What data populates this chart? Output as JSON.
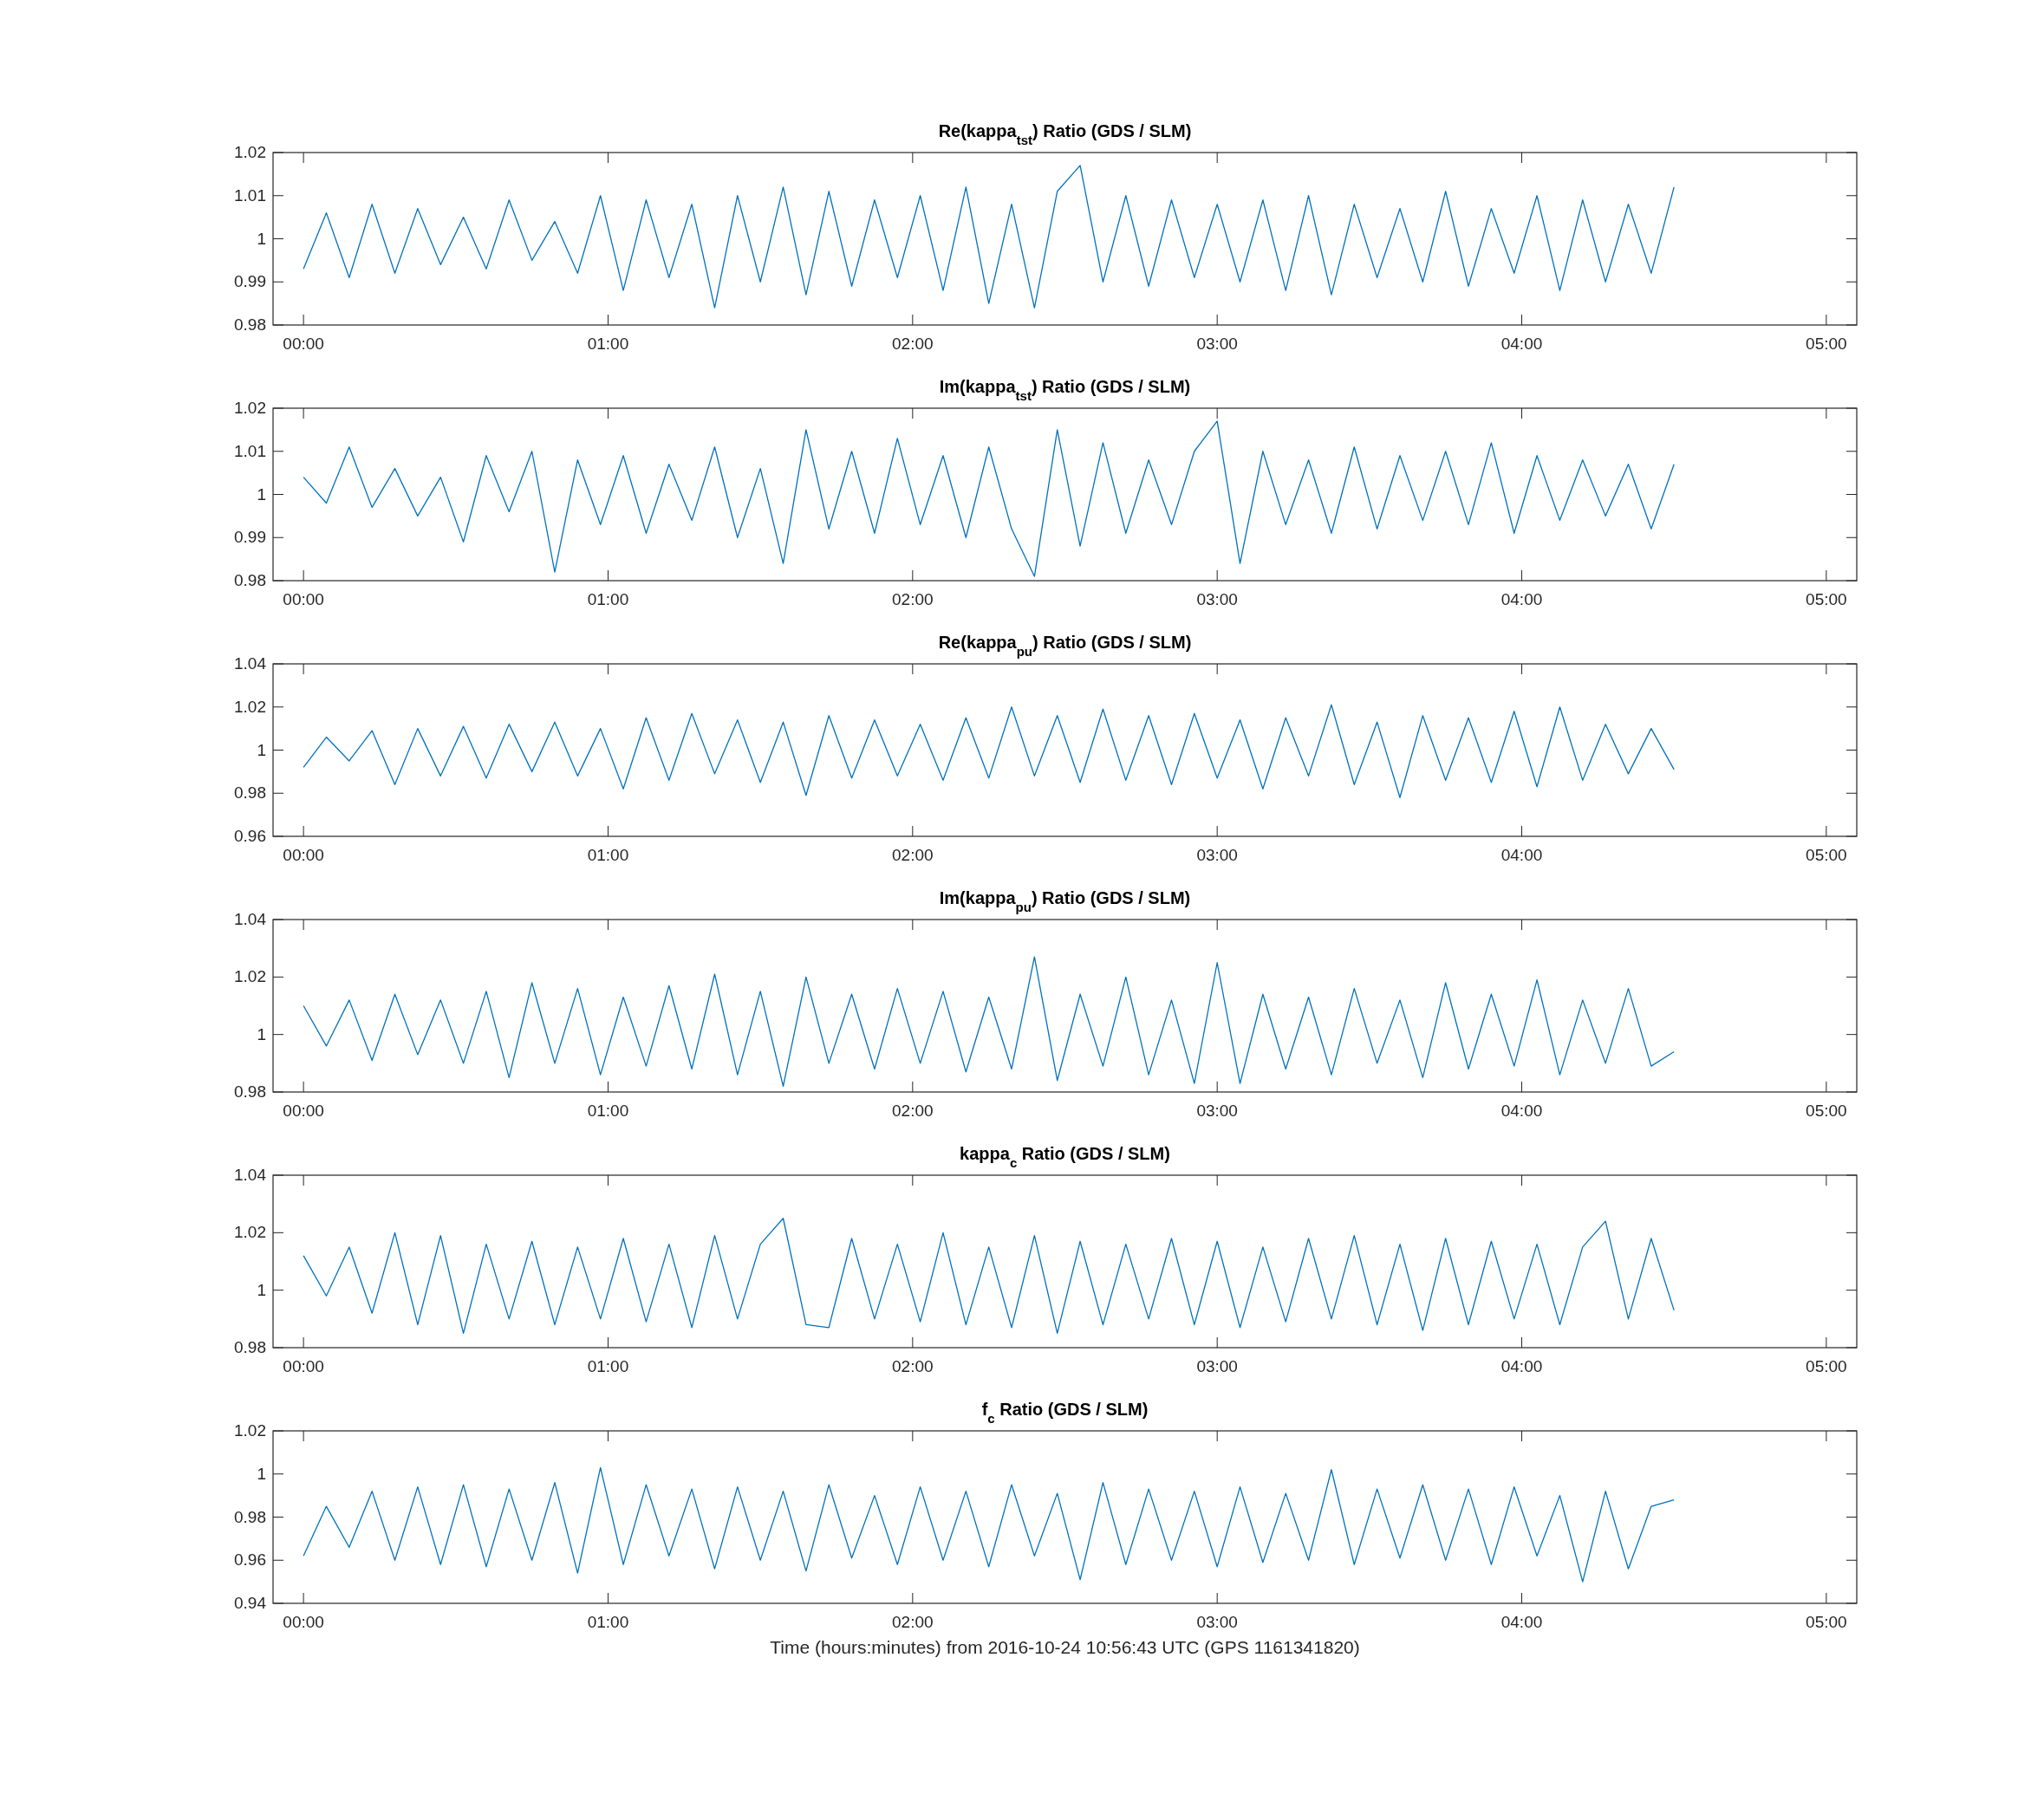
{
  "chart_data": [
    {
      "type": "line",
      "title": "Re(kappa$_{tst}$) Ratio (GDS / SLM)",
      "xlim": [
        -0.1,
        5.1
      ],
      "ylim": [
        0.98,
        1.02
      ],
      "yticks": [
        0.98,
        0.99,
        1,
        1.01,
        1.02
      ],
      "xticks": [
        {
          "value": 0,
          "label": "00:00"
        },
        {
          "value": 1,
          "label": "01:00"
        },
        {
          "value": 2,
          "label": "02:00"
        },
        {
          "value": 3,
          "label": "03:00"
        },
        {
          "value": 4,
          "label": "04:00"
        },
        {
          "value": 5,
          "label": "05:00"
        }
      ],
      "x": [
        0,
        0.075,
        0.15,
        0.225,
        0.3,
        0.375,
        0.45,
        0.525,
        0.6,
        0.675,
        0.75,
        0.825,
        0.9,
        0.975,
        1.05,
        1.125,
        1.2,
        1.275,
        1.35,
        1.425,
        1.5,
        1.575,
        1.65,
        1.725,
        1.8,
        1.875,
        1.95,
        2.025,
        2.1,
        2.175,
        2.25,
        2.325,
        2.4,
        2.475,
        2.55,
        2.625,
        2.7,
        2.775,
        2.85,
        2.925,
        3,
        3.075,
        3.15,
        3.225,
        3.3,
        3.375,
        3.45,
        3.525,
        3.6,
        3.675,
        3.75,
        3.825,
        3.9,
        3.975,
        4.05,
        4.125,
        4.2,
        4.275,
        4.35,
        4.425,
        4.5
      ],
      "series": [
        {
          "color": "#0072bd",
          "values": [
            0.993,
            1.006,
            0.991,
            1.008,
            0.992,
            1.007,
            0.994,
            1.005,
            0.993,
            1.009,
            0.995,
            1.004,
            0.992,
            1.01,
            0.988,
            1.009,
            0.991,
            1.008,
            0.984,
            1.01,
            0.99,
            1.012,
            0.987,
            1.011,
            0.989,
            1.009,
            0.991,
            1.01,
            0.988,
            1.012,
            0.985,
            1.008,
            0.984,
            1.011,
            1.017,
            0.99,
            1.01,
            0.989,
            1.009,
            0.991,
            1.008,
            0.99,
            1.009,
            0.988,
            1.01,
            0.987,
            1.008,
            0.991,
            1.007,
            0.99,
            1.011,
            0.989,
            1.007,
            0.992,
            1.01,
            0.988,
            1.009,
            0.99,
            1.008,
            0.992,
            1.012
          ]
        }
      ]
    },
    {
      "type": "line",
      "title": "Im(kappa$_{tst}$) Ratio (GDS / SLM)",
      "xlim": [
        -0.1,
        5.1
      ],
      "ylim": [
        0.98,
        1.02
      ],
      "yticks": [
        0.98,
        0.99,
        1,
        1.01,
        1.02
      ],
      "xticks": [
        {
          "value": 0,
          "label": "00:00"
        },
        {
          "value": 1,
          "label": "01:00"
        },
        {
          "value": 2,
          "label": "02:00"
        },
        {
          "value": 3,
          "label": "03:00"
        },
        {
          "value": 4,
          "label": "04:00"
        },
        {
          "value": 5,
          "label": "05:00"
        }
      ],
      "x": [
        0,
        0.075,
        0.15,
        0.225,
        0.3,
        0.375,
        0.45,
        0.525,
        0.6,
        0.675,
        0.75,
        0.825,
        0.9,
        0.975,
        1.05,
        1.125,
        1.2,
        1.275,
        1.35,
        1.425,
        1.5,
        1.575,
        1.65,
        1.725,
        1.8,
        1.875,
        1.95,
        2.025,
        2.1,
        2.175,
        2.25,
        2.325,
        2.4,
        2.475,
        2.55,
        2.625,
        2.7,
        2.775,
        2.85,
        2.925,
        3,
        3.075,
        3.15,
        3.225,
        3.3,
        3.375,
        3.45,
        3.525,
        3.6,
        3.675,
        3.75,
        3.825,
        3.9,
        3.975,
        4.05,
        4.125,
        4.2,
        4.275,
        4.35,
        4.425,
        4.5
      ],
      "series": [
        {
          "color": "#0072bd",
          "values": [
            1.004,
            0.998,
            1.011,
            0.997,
            1.006,
            0.995,
            1.004,
            0.989,
            1.009,
            0.996,
            1.01,
            0.982,
            1.008,
            0.993,
            1.009,
            0.991,
            1.007,
            0.994,
            1.011,
            0.99,
            1.006,
            0.984,
            1.015,
            0.992,
            1.01,
            0.991,
            1.013,
            0.993,
            1.009,
            0.99,
            1.011,
            0.992,
            0.981,
            1.015,
            0.988,
            1.012,
            0.991,
            1.008,
            0.993,
            1.01,
            1.017,
            0.984,
            1.01,
            0.993,
            1.008,
            0.991,
            1.011,
            0.992,
            1.009,
            0.994,
            1.01,
            0.993,
            1.012,
            0.991,
            1.009,
            0.994,
            1.008,
            0.995,
            1.007,
            0.992,
            1.007
          ]
        }
      ]
    },
    {
      "type": "line",
      "title": "Re(kappa$_{pu}$) Ratio (GDS / SLM)",
      "xlim": [
        -0.1,
        5.1
      ],
      "ylim": [
        0.96,
        1.04
      ],
      "yticks": [
        0.96,
        0.98,
        1,
        1.02,
        1.04
      ],
      "xticks": [
        {
          "value": 0,
          "label": "00:00"
        },
        {
          "value": 1,
          "label": "01:00"
        },
        {
          "value": 2,
          "label": "02:00"
        },
        {
          "value": 3,
          "label": "03:00"
        },
        {
          "value": 4,
          "label": "04:00"
        },
        {
          "value": 5,
          "label": "05:00"
        }
      ],
      "x": [
        0,
        0.075,
        0.15,
        0.225,
        0.3,
        0.375,
        0.45,
        0.525,
        0.6,
        0.675,
        0.75,
        0.825,
        0.9,
        0.975,
        1.05,
        1.125,
        1.2,
        1.275,
        1.35,
        1.425,
        1.5,
        1.575,
        1.65,
        1.725,
        1.8,
        1.875,
        1.95,
        2.025,
        2.1,
        2.175,
        2.25,
        2.325,
        2.4,
        2.475,
        2.55,
        2.625,
        2.7,
        2.775,
        2.85,
        2.925,
        3,
        3.075,
        3.15,
        3.225,
        3.3,
        3.375,
        3.45,
        3.525,
        3.6,
        3.675,
        3.75,
        3.825,
        3.9,
        3.975,
        4.05,
        4.125,
        4.2,
        4.275,
        4.35,
        4.425,
        4.5
      ],
      "series": [
        {
          "color": "#0072bd",
          "values": [
            0.992,
            1.006,
            0.995,
            1.009,
            0.984,
            1.01,
            0.988,
            1.011,
            0.987,
            1.012,
            0.99,
            1.013,
            0.988,
            1.01,
            0.982,
            1.015,
            0.986,
            1.017,
            0.989,
            1.014,
            0.985,
            1.013,
            0.979,
            1.016,
            0.987,
            1.014,
            0.988,
            1.012,
            0.986,
            1.015,
            0.987,
            1.02,
            0.988,
            1.016,
            0.985,
            1.019,
            0.986,
            1.016,
            0.984,
            1.017,
            0.987,
            1.014,
            0.982,
            1.015,
            0.988,
            1.021,
            0.984,
            1.013,
            0.978,
            1.016,
            0.986,
            1.015,
            0.985,
            1.018,
            0.983,
            1.02,
            0.986,
            1.012,
            0.989,
            1.01,
            0.991
          ]
        }
      ]
    },
    {
      "type": "line",
      "title": "Im(kappa$_{pu}$) Ratio (GDS / SLM)",
      "xlim": [
        -0.1,
        5.1
      ],
      "ylim": [
        0.98,
        1.04
      ],
      "yticks": [
        0.98,
        1,
        1.02,
        1.04
      ],
      "xticks": [
        {
          "value": 0,
          "label": "00:00"
        },
        {
          "value": 1,
          "label": "01:00"
        },
        {
          "value": 2,
          "label": "02:00"
        },
        {
          "value": 3,
          "label": "03:00"
        },
        {
          "value": 4,
          "label": "04:00"
        },
        {
          "value": 5,
          "label": "05:00"
        }
      ],
      "x": [
        0,
        0.075,
        0.15,
        0.225,
        0.3,
        0.375,
        0.45,
        0.525,
        0.6,
        0.675,
        0.75,
        0.825,
        0.9,
        0.975,
        1.05,
        1.125,
        1.2,
        1.275,
        1.35,
        1.425,
        1.5,
        1.575,
        1.65,
        1.725,
        1.8,
        1.875,
        1.95,
        2.025,
        2.1,
        2.175,
        2.25,
        2.325,
        2.4,
        2.475,
        2.55,
        2.625,
        2.7,
        2.775,
        2.85,
        2.925,
        3,
        3.075,
        3.15,
        3.225,
        3.3,
        3.375,
        3.45,
        3.525,
        3.6,
        3.675,
        3.75,
        3.825,
        3.9,
        3.975,
        4.05,
        4.125,
        4.2,
        4.275,
        4.35,
        4.425,
        4.5
      ],
      "series": [
        {
          "color": "#0072bd",
          "values": [
            1.01,
            0.996,
            1.012,
            0.991,
            1.014,
            0.993,
            1.012,
            0.99,
            1.015,
            0.985,
            1.018,
            0.99,
            1.016,
            0.986,
            1.013,
            0.989,
            1.017,
            0.988,
            1.021,
            0.986,
            1.015,
            0.982,
            1.02,
            0.99,
            1.014,
            0.988,
            1.016,
            0.99,
            1.015,
            0.987,
            1.013,
            0.988,
            1.027,
            0.984,
            1.014,
            0.989,
            1.02,
            0.986,
            1.012,
            0.983,
            1.025,
            0.983,
            1.014,
            0.988,
            1.013,
            0.986,
            1.016,
            0.99,
            1.012,
            0.985,
            1.018,
            0.988,
            1.014,
            0.989,
            1.019,
            0.986,
            1.012,
            0.99,
            1.016,
            0.989,
            0.994
          ]
        }
      ]
    },
    {
      "type": "line",
      "title": "kappa$_{c}$ Ratio (GDS / SLM)",
      "xlim": [
        -0.1,
        5.1
      ],
      "ylim": [
        0.98,
        1.04
      ],
      "yticks": [
        0.98,
        1,
        1.02,
        1.04
      ],
      "xticks": [
        {
          "value": 0,
          "label": "00:00"
        },
        {
          "value": 1,
          "label": "01:00"
        },
        {
          "value": 2,
          "label": "02:00"
        },
        {
          "value": 3,
          "label": "03:00"
        },
        {
          "value": 4,
          "label": "04:00"
        },
        {
          "value": 5,
          "label": "05:00"
        }
      ],
      "x": [
        0,
        0.075,
        0.15,
        0.225,
        0.3,
        0.375,
        0.45,
        0.525,
        0.6,
        0.675,
        0.75,
        0.825,
        0.9,
        0.975,
        1.05,
        1.125,
        1.2,
        1.275,
        1.35,
        1.425,
        1.5,
        1.575,
        1.65,
        1.725,
        1.8,
        1.875,
        1.95,
        2.025,
        2.1,
        2.175,
        2.25,
        2.325,
        2.4,
        2.475,
        2.55,
        2.625,
        2.7,
        2.775,
        2.85,
        2.925,
        3,
        3.075,
        3.15,
        3.225,
        3.3,
        3.375,
        3.45,
        3.525,
        3.6,
        3.675,
        3.75,
        3.825,
        3.9,
        3.975,
        4.05,
        4.125,
        4.2,
        4.275,
        4.35,
        4.425,
        4.5
      ],
      "series": [
        {
          "color": "#0072bd",
          "values": [
            1.012,
            0.998,
            1.015,
            0.992,
            1.02,
            0.988,
            1.019,
            0.985,
            1.016,
            0.99,
            1.017,
            0.988,
            1.015,
            0.99,
            1.018,
            0.989,
            1.016,
            0.987,
            1.019,
            0.99,
            1.016,
            1.025,
            0.988,
            0.987,
            1.018,
            0.99,
            1.016,
            0.989,
            1.02,
            0.988,
            1.015,
            0.987,
            1.019,
            0.985,
            1.017,
            0.988,
            1.016,
            0.99,
            1.018,
            0.988,
            1.017,
            0.987,
            1.015,
            0.989,
            1.018,
            0.99,
            1.019,
            0.988,
            1.016,
            0.986,
            1.018,
            0.988,
            1.017,
            0.99,
            1.016,
            0.988,
            1.015,
            1.024,
            0.99,
            1.018,
            0.993
          ]
        }
      ]
    },
    {
      "type": "line",
      "title": "f$_{c}$ Ratio (GDS / SLM)",
      "xlabel": "Time (hours:minutes) from 2016-10-24 10:56:43 UTC (GPS 1161341820)",
      "xlim": [
        -0.1,
        5.1
      ],
      "ylim": [
        0.94,
        1.02
      ],
      "yticks": [
        0.94,
        0.96,
        0.98,
        1,
        1.02
      ],
      "xticks": [
        {
          "value": 0,
          "label": "00:00"
        },
        {
          "value": 1,
          "label": "01:00"
        },
        {
          "value": 2,
          "label": "02:00"
        },
        {
          "value": 3,
          "label": "03:00"
        },
        {
          "value": 4,
          "label": "04:00"
        },
        {
          "value": 5,
          "label": "05:00"
        }
      ],
      "x": [
        0,
        0.075,
        0.15,
        0.225,
        0.3,
        0.375,
        0.45,
        0.525,
        0.6,
        0.675,
        0.75,
        0.825,
        0.9,
        0.975,
        1.05,
        1.125,
        1.2,
        1.275,
        1.35,
        1.425,
        1.5,
        1.575,
        1.65,
        1.725,
        1.8,
        1.875,
        1.95,
        2.025,
        2.1,
        2.175,
        2.25,
        2.325,
        2.4,
        2.475,
        2.55,
        2.625,
        2.7,
        2.775,
        2.85,
        2.925,
        3,
        3.075,
        3.15,
        3.225,
        3.3,
        3.375,
        3.45,
        3.525,
        3.6,
        3.675,
        3.75,
        3.825,
        3.9,
        3.975,
        4.05,
        4.125,
        4.2,
        4.275,
        4.35,
        4.425,
        4.5
      ],
      "series": [
        {
          "color": "#0072bd",
          "values": [
            0.962,
            0.985,
            0.966,
            0.992,
            0.96,
            0.994,
            0.958,
            0.995,
            0.957,
            0.993,
            0.96,
            0.996,
            0.954,
            1.003,
            0.958,
            0.995,
            0.962,
            0.993,
            0.956,
            0.994,
            0.96,
            0.992,
            0.955,
            0.995,
            0.961,
            0.99,
            0.958,
            0.994,
            0.96,
            0.992,
            0.957,
            0.995,
            0.962,
            0.991,
            0.951,
            0.996,
            0.958,
            0.993,
            0.96,
            0.992,
            0.957,
            0.994,
            0.959,
            0.991,
            0.96,
            1.002,
            0.958,
            0.993,
            0.961,
            0.995,
            0.96,
            0.993,
            0.958,
            0.994,
            0.962,
            0.99,
            0.95,
            0.992,
            0.956,
            0.985,
            0.988
          ]
        }
      ]
    }
  ]
}
